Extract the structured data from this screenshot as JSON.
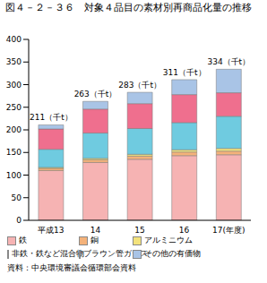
{
  "chart_data": {
    "type": "bar",
    "title": "図４－２－３６　対象４品目の素材別再商品化量の推移",
    "source": "資料：中央環境審議会循環部会資料",
    "categories": [
      "平成13",
      "14",
      "15",
      "16",
      "17(年度)"
    ],
    "annotations": [
      "211（千t）",
      "263（千t）",
      "283（千t）",
      "311（千t）",
      "334（千t）"
    ],
    "stacked": true,
    "grid": false,
    "legend": "bottom",
    "ylim": [
      0,
      400
    ],
    "yticks": [
      0,
      50,
      100,
      150,
      200,
      250,
      300,
      350,
      400
    ],
    "series": [
      {
        "name": "鉄",
        "color": "#f6b3b3",
        "values": [
          110,
          128,
          135,
          143,
          145
        ]
      },
      {
        "name": "銅",
        "color": "#f4b27a",
        "values": [
          5,
          6,
          7,
          8,
          8
        ]
      },
      {
        "name": "アルミニウム",
        "color": "#f3e27c",
        "values": [
          2,
          3,
          4,
          5,
          6
        ]
      },
      {
        "name": "非鉄・鉄など混合物",
        "color": "#6fcbe0",
        "values": [
          40,
          56,
          57,
          60,
          71
        ]
      },
      {
        "name": "ブラウン管ガラス",
        "color": "#ef6f8e",
        "values": [
          45,
          53,
          55,
          62,
          52
        ]
      },
      {
        "name": "その他の有価物",
        "color": "#a9c4e6",
        "values": [
          9,
          17,
          25,
          33,
          52
        ]
      }
    ]
  }
}
